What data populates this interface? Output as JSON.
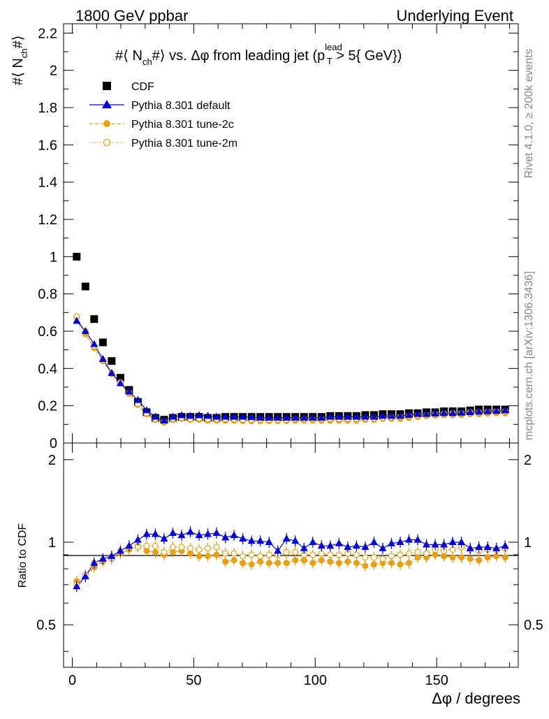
{
  "header": {
    "left": "1800 GeV ppbar",
    "right": "Underlying Event"
  },
  "side_labels": {
    "rivet": "Rivet 4.1.0, ≥ 200k events",
    "mcplots": "mcplots.cern.ch [arXiv:1306.3436]"
  },
  "colors": {
    "cdf": "#000000",
    "default": "#0000dd",
    "tune2c": "#e8a010",
    "tune2m": "#e8a010"
  },
  "chart_data": {
    "type": "scatter",
    "title_parts": {
      "p1": "#⟨ N",
      "sub1": "ch",
      "p2": "#⟩ vs. Δφ from leading jet  (p",
      "sup": "lead",
      "sub2": "T",
      "p3": " > 5{ GeV})"
    },
    "ylabel_parts": {
      "a": "#⟨ N",
      "sub": "ch",
      "b": "#⟩"
    },
    "ratio_ylabel": "Ratio to CDF",
    "xlabel": "Δφ / degrees",
    "xlim": [
      -3.6,
      183.6
    ],
    "ylim": [
      0,
      2.25
    ],
    "ratio_ylim": [
      0.35,
      2.3
    ],
    "x_ticks": [
      "0",
      "50",
      "100",
      "150"
    ],
    "y_ticks": [
      "0",
      "0.2",
      "0.4",
      "0.6",
      "0.8",
      "1",
      "1.2",
      "1.4",
      "1.6",
      "1.8",
      "2",
      "2.2"
    ],
    "ratio_ticks": [
      "0.5",
      "1",
      "2"
    ],
    "x": [
      1.8,
      5.4,
      9.0,
      12.6,
      16.2,
      19.8,
      23.4,
      27.0,
      30.6,
      34.2,
      37.8,
      41.4,
      45.0,
      48.6,
      52.2,
      55.8,
      59.4,
      63.0,
      66.6,
      70.2,
      73.8,
      77.4,
      81.0,
      84.6,
      88.2,
      91.8,
      95.4,
      99.0,
      102.6,
      106.2,
      109.8,
      113.4,
      117.0,
      120.6,
      124.2,
      127.8,
      131.4,
      135.0,
      138.6,
      142.2,
      145.8,
      149.4,
      153.0,
      156.6,
      160.2,
      163.8,
      167.4,
      171.0,
      174.6,
      178.2
    ],
    "series": [
      {
        "name": "CDF",
        "marker": "square",
        "values": [
          1.0,
          0.84,
          0.665,
          0.54,
          0.44,
          0.35,
          0.285,
          0.22,
          0.165,
          0.135,
          0.125,
          0.135,
          0.14,
          0.14,
          0.14,
          0.135,
          0.135,
          0.14,
          0.14,
          0.14,
          0.14,
          0.14,
          0.14,
          0.14,
          0.14,
          0.14,
          0.14,
          0.14,
          0.14,
          0.145,
          0.145,
          0.145,
          0.145,
          0.15,
          0.15,
          0.155,
          0.155,
          0.155,
          0.16,
          0.16,
          0.165,
          0.165,
          0.17,
          0.17,
          0.17,
          0.175,
          0.18,
          0.18,
          0.18,
          0.18
        ]
      },
      {
        "name": "Pythia 8.301 default",
        "marker": "triangle",
        "values": [
          0.655,
          0.6,
          0.53,
          0.45,
          0.375,
          0.32,
          0.275,
          0.23,
          0.175,
          0.14,
          0.12,
          0.14,
          0.148,
          0.145,
          0.148,
          0.145,
          0.14,
          0.14,
          0.14,
          0.14,
          0.138,
          0.135,
          0.135,
          0.135,
          0.135,
          0.135,
          0.135,
          0.135,
          0.135,
          0.14,
          0.14,
          0.14,
          0.14,
          0.14,
          0.14,
          0.145,
          0.145,
          0.145,
          0.15,
          0.155,
          0.155,
          0.158,
          0.16,
          0.16,
          0.162,
          0.165,
          0.168,
          0.17,
          0.172,
          0.175
        ]
      },
      {
        "name": "Pythia 8.301 tune-2c",
        "marker": "circle",
        "values": [
          0.675,
          0.585,
          0.51,
          0.44,
          0.37,
          0.32,
          0.265,
          0.205,
          0.155,
          0.125,
          0.11,
          0.125,
          0.13,
          0.125,
          0.125,
          0.12,
          0.12,
          0.12,
          0.12,
          0.118,
          0.118,
          0.118,
          0.118,
          0.118,
          0.118,
          0.12,
          0.12,
          0.12,
          0.12,
          0.12,
          0.12,
          0.12,
          0.12,
          0.125,
          0.125,
          0.13,
          0.13,
          0.13,
          0.135,
          0.14,
          0.145,
          0.148,
          0.15,
          0.15,
          0.15,
          0.155,
          0.155,
          0.158,
          0.16,
          0.16
        ]
      },
      {
        "name": "Pythia 8.301 tune-2m",
        "marker": "open-circle",
        "values": [
          0.68,
          0.6,
          0.52,
          0.445,
          0.375,
          0.325,
          0.27,
          0.21,
          0.16,
          0.13,
          0.115,
          0.13,
          0.135,
          0.13,
          0.132,
          0.128,
          0.128,
          0.128,
          0.128,
          0.125,
          0.125,
          0.125,
          0.125,
          0.125,
          0.125,
          0.128,
          0.128,
          0.128,
          0.128,
          0.13,
          0.13,
          0.13,
          0.13,
          0.132,
          0.132,
          0.135,
          0.138,
          0.14,
          0.145,
          0.148,
          0.15,
          0.155,
          0.158,
          0.16,
          0.16,
          0.165,
          0.165,
          0.168,
          0.17,
          0.17
        ]
      }
    ],
    "ratios": [
      {
        "name": "Pythia 8.301 default",
        "values": [
          0.69,
          0.75,
          0.84,
          0.87,
          0.89,
          0.93,
          0.97,
          1.02,
          1.07,
          1.07,
          1.03,
          1.08,
          1.06,
          1.09,
          1.06,
          1.07,
          1.08,
          1.04,
          1.06,
          1.03,
          1.01,
          1.01,
          1.0,
          0.93,
          1.03,
          1.01,
          0.95,
          1.0,
          0.97,
          0.97,
          0.99,
          0.96,
          0.97,
          0.96,
          1.0,
          0.95,
          0.99,
          1.0,
          1.02,
          1.02,
          0.98,
          0.98,
          0.98,
          1.0,
          1.0,
          0.95,
          0.96,
          0.96,
          0.95,
          0.97
        ]
      },
      {
        "name": "Pythia 8.301 tune-2c",
        "values": [
          0.72,
          0.75,
          0.81,
          0.85,
          0.87,
          0.91,
          0.94,
          0.97,
          0.93,
          0.92,
          0.9,
          0.92,
          0.93,
          0.91,
          0.89,
          0.89,
          0.9,
          0.85,
          0.86,
          0.84,
          0.83,
          0.85,
          0.84,
          0.84,
          0.84,
          0.86,
          0.86,
          0.84,
          0.86,
          0.85,
          0.84,
          0.85,
          0.84,
          0.82,
          0.83,
          0.84,
          0.84,
          0.83,
          0.84,
          0.88,
          0.88,
          0.9,
          0.89,
          0.88,
          0.88,
          0.87,
          0.86,
          0.88,
          0.89,
          0.88
        ]
      },
      {
        "name": "Pythia 8.301 tune-2m",
        "values": [
          0.7,
          0.76,
          0.84,
          0.86,
          0.87,
          0.93,
          0.96,
          0.96,
          0.97,
          0.97,
          0.92,
          0.96,
          0.96,
          0.95,
          0.94,
          0.95,
          0.96,
          0.91,
          0.91,
          0.89,
          0.9,
          0.89,
          0.9,
          0.9,
          0.92,
          0.92,
          0.9,
          0.9,
          0.91,
          0.9,
          0.9,
          0.91,
          0.9,
          0.88,
          0.88,
          0.87,
          0.89,
          0.9,
          0.91,
          0.92,
          0.91,
          0.94,
          0.93,
          0.94,
          0.96,
          0.94,
          0.93,
          0.94,
          0.94,
          0.95
        ]
      }
    ]
  }
}
